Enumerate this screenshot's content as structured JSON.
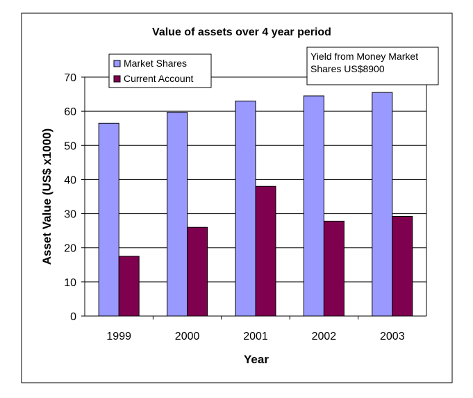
{
  "chart_data": {
    "type": "bar",
    "title": "Value of assets over 4 year period",
    "xlabel": "Year",
    "ylabel": "Asset Value (US$ x1000)",
    "categories": [
      "1999",
      "2000",
      "2001",
      "2002",
      "2003"
    ],
    "series": [
      {
        "name": "Market Shares",
        "color": "#9999ff",
        "values": [
          56.5,
          59.7,
          63,
          64.5,
          65.5
        ]
      },
      {
        "name": "Current Account",
        "color": "#800050",
        "values": [
          17.5,
          26,
          38,
          27.8,
          29.2
        ]
      }
    ],
    "ylim": [
      0,
      70
    ],
    "yticks": [
      "0",
      "10",
      "20",
      "30",
      "40",
      "50",
      "60",
      "70"
    ],
    "grid": true,
    "legend_position": "top-left",
    "annotation": {
      "lines": [
        "Yield from Money Market",
        "Shares US$8900"
      ]
    }
  }
}
